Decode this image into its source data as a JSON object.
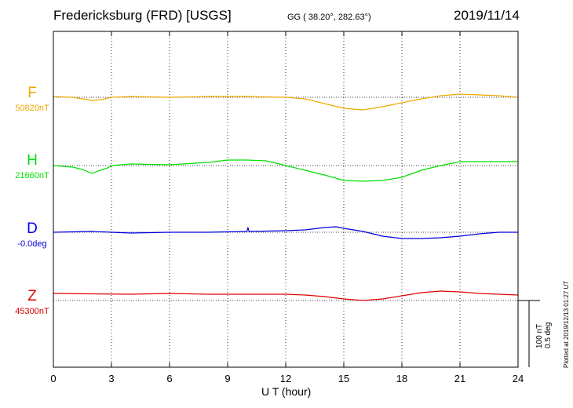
{
  "header": {
    "title": "Fredericksburg (FRD)  [USGS]",
    "coordinates": "GG ( 38.20°, 282.63°)",
    "date": "2019/11/14"
  },
  "chart_data": {
    "type": "line",
    "xlabel": "U T (hour)",
    "xlim": [
      0,
      24
    ],
    "x_ticks": [
      "0",
      "3",
      "6",
      "9",
      "12",
      "15",
      "18",
      "21",
      "24"
    ],
    "grid": true,
    "scale_bar": {
      "line1": "100 nT",
      "line2": "0.5 deg"
    },
    "plotted_note": "Plotted at 2019/12/13 01:27 UT",
    "series": [
      {
        "name": "F",
        "baseline": "50820nT",
        "color": "#f0a800",
        "values": [
          [
            0,
            123
          ],
          [
            1,
            124
          ],
          [
            1.5,
            126
          ],
          [
            2,
            128
          ],
          [
            2.5,
            127
          ],
          [
            3,
            124
          ],
          [
            4,
            123
          ],
          [
            6,
            124
          ],
          [
            8,
            123
          ],
          [
            10,
            123
          ],
          [
            12,
            124
          ],
          [
            13,
            126
          ],
          [
            14,
            132
          ],
          [
            15,
            138
          ],
          [
            16,
            140
          ],
          [
            17,
            136
          ],
          [
            18,
            131
          ],
          [
            19,
            126
          ],
          [
            20,
            122
          ],
          [
            21,
            120
          ],
          [
            22,
            121
          ],
          [
            23,
            122
          ],
          [
            24,
            124
          ]
        ]
      },
      {
        "name": "H",
        "baseline": "21660nT",
        "color": "#00e000",
        "values": [
          [
            0,
            211
          ],
          [
            1,
            213
          ],
          [
            1.5,
            216
          ],
          [
            2,
            221
          ],
          [
            2.3,
            218
          ],
          [
            2.8,
            214
          ],
          [
            3,
            211
          ],
          [
            4,
            209
          ],
          [
            6,
            210
          ],
          [
            8,
            207
          ],
          [
            9,
            204
          ],
          [
            10,
            204
          ],
          [
            11,
            205
          ],
          [
            12,
            211
          ],
          [
            13,
            217
          ],
          [
            14,
            223
          ],
          [
            15,
            230
          ],
          [
            16,
            231
          ],
          [
            17,
            230
          ],
          [
            18,
            226
          ],
          [
            19,
            217
          ],
          [
            20,
            211
          ],
          [
            21,
            206
          ],
          [
            22,
            206
          ],
          [
            23,
            206
          ],
          [
            24,
            206
          ]
        ]
      },
      {
        "name": "D",
        "baseline": "-0.0deg",
        "color": "#0000e0",
        "values": [
          [
            0,
            296
          ],
          [
            2,
            295
          ],
          [
            4,
            297
          ],
          [
            6,
            296
          ],
          [
            8,
            296
          ],
          [
            10,
            295
          ],
          [
            10.05,
            290
          ],
          [
            10.1,
            295
          ],
          [
            12,
            294
          ],
          [
            13,
            293
          ],
          [
            14,
            290
          ],
          [
            14.6,
            289
          ],
          [
            15,
            291
          ],
          [
            16,
            295
          ],
          [
            17,
            301
          ],
          [
            18,
            304
          ],
          [
            19,
            304
          ],
          [
            20,
            303
          ],
          [
            21,
            301
          ],
          [
            22,
            298
          ],
          [
            23,
            296
          ],
          [
            24,
            296
          ]
        ]
      },
      {
        "name": "Z",
        "baseline": "45300nT",
        "color": "#e00000",
        "values": [
          [
            0,
            374
          ],
          [
            4,
            375
          ],
          [
            6,
            374
          ],
          [
            8,
            375
          ],
          [
            12,
            375
          ],
          [
            13,
            376
          ],
          [
            14,
            378
          ],
          [
            15,
            381
          ],
          [
            16,
            383
          ],
          [
            17,
            381
          ],
          [
            18,
            377
          ],
          [
            19,
            373
          ],
          [
            20,
            371
          ],
          [
            21,
            372
          ],
          [
            22,
            374
          ],
          [
            23,
            375
          ],
          [
            24,
            376
          ]
        ]
      }
    ]
  }
}
